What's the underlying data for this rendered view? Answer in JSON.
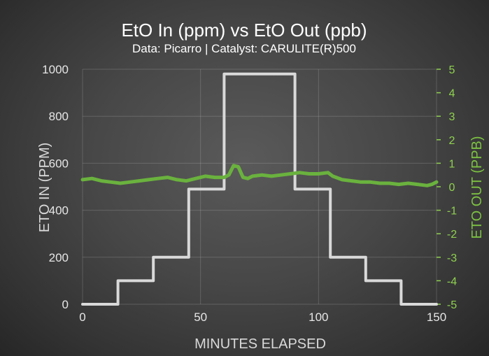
{
  "chart_data": {
    "type": "line",
    "title": "EtO In (ppm) vs EtO Out (ppb)",
    "subtitle": "Data: Picarro | Catalyst: CARULITE(R)500",
    "xlabel": "MINUTES ELAPSED",
    "ylabel": "ETO IN (PPM)",
    "y2label": "ETO OUT (PPB)",
    "xlim": [
      0,
      150
    ],
    "ylim": [
      0,
      1000
    ],
    "y2lim": [
      -5,
      5
    ],
    "x_ticks": [
      "0",
      "50",
      "100",
      "150"
    ],
    "x_tick_values": [
      0,
      50,
      100,
      150
    ],
    "y_ticks": [
      "0",
      "200",
      "400",
      "600",
      "800",
      "1000"
    ],
    "y_tick_values": [
      0,
      200,
      400,
      600,
      800,
      1000
    ],
    "y2_ticks": [
      "5",
      "4",
      "3",
      "2",
      "1",
      "0",
      "-1",
      "-2",
      "-3",
      "-4",
      "-5"
    ],
    "y2_tick_values": [
      5,
      4,
      3,
      2,
      1,
      0,
      -1,
      -2,
      -3,
      -4,
      -5
    ],
    "grid": "vertical and horizontal, light",
    "colors": {
      "eto_in": "#d9d9d9",
      "eto_out": "#6ab23e",
      "right_axis": "#8fd14f"
    },
    "series": [
      {
        "axis": "left",
        "x": [
          0,
          15,
          15,
          30,
          30,
          45,
          45,
          60,
          60,
          90,
          90,
          105,
          105,
          120,
          120,
          135,
          135,
          150
        ],
        "values": [
          0,
          0,
          100,
          100,
          200,
          200,
          490,
          490,
          980,
          980,
          490,
          490,
          200,
          200,
          100,
          100,
          0,
          0
        ]
      },
      {
        "axis": "right",
        "x": [
          0,
          4,
          8,
          12,
          16,
          20,
          24,
          28,
          32,
          36,
          40,
          44,
          48,
          52,
          56,
          60,
          62,
          64,
          66,
          68,
          70,
          72,
          76,
          80,
          84,
          88,
          92,
          96,
          100,
          104,
          106,
          110,
          114,
          118,
          122,
          126,
          130,
          134,
          138,
          142,
          146,
          148,
          150
        ],
        "values": [
          0.3,
          0.35,
          0.25,
          0.2,
          0.15,
          0.2,
          0.25,
          0.3,
          0.35,
          0.4,
          0.3,
          0.25,
          0.35,
          0.45,
          0.4,
          0.4,
          0.5,
          0.9,
          0.85,
          0.4,
          0.35,
          0.45,
          0.5,
          0.45,
          0.5,
          0.55,
          0.6,
          0.55,
          0.55,
          0.6,
          0.45,
          0.3,
          0.25,
          0.2,
          0.2,
          0.15,
          0.15,
          0.1,
          0.15,
          0.1,
          0.05,
          0.1,
          0.2
        ]
      }
    ]
  }
}
